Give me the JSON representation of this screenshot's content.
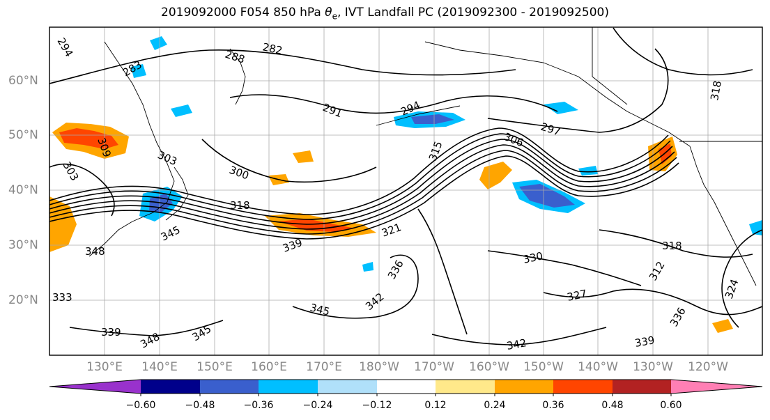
{
  "title": {
    "prefix": "2019092000 F054 850 hPa ",
    "symbol": "θ",
    "subscript": "e",
    "suffix": ", IVT Landfall PC (2019092300 - 2019092500)"
  },
  "map": {
    "lat_labels": [
      "20°N",
      "30°N",
      "40°N",
      "50°N",
      "60°N"
    ],
    "lon_labels": [
      "130°E",
      "140°E",
      "150°E",
      "160°E",
      "170°E",
      "180°W",
      "170°W",
      "160°W",
      "150°W",
      "140°W",
      "130°W",
      "120°W"
    ],
    "contour_labels": [
      "294",
      "288",
      "282",
      "283",
      "291",
      "294",
      "297",
      "306",
      "303",
      "300",
      "318",
      "345",
      "339",
      "348",
      "345",
      "333",
      "330",
      "327",
      "342",
      "342",
      "348",
      "339",
      "345",
      "318",
      "318",
      "336",
      "303",
      "312",
      "315",
      "309",
      "321",
      "324",
      "336",
      "339"
    ]
  },
  "colorbar": {
    "ticks": [
      "−0.60",
      "−0.48",
      "−0.36",
      "−0.24",
      "−0.12",
      "0.12",
      "0.24",
      "0.36",
      "0.48",
      "0.60"
    ],
    "colors": [
      "#9932cc",
      "#00008b",
      "#3a5fcd",
      "#00bfff",
      "#b0e0fa",
      "#ffffff",
      "#ffe98a",
      "#ffa500",
      "#ff4500",
      "#b22222",
      "#ff7fb4"
    ],
    "extend_low_color": "#9932cc",
    "extend_high_color": "#ff7fb4"
  }
}
